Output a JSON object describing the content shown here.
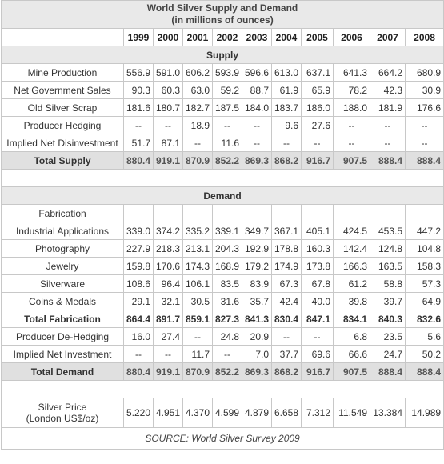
{
  "title_line1": "World Silver Supply and Demand",
  "title_line2": "(in millions of ounces)",
  "years": [
    "1999",
    "2000",
    "2001",
    "2002",
    "2003",
    "2004",
    "2005",
    "2006",
    "2007",
    "2008"
  ],
  "supply_header": "Supply",
  "supply_rows": [
    {
      "label": "Mine Production",
      "values": [
        "556.9",
        "591.0",
        "606.2",
        "593.9",
        "596.6",
        "613.0",
        "637.1",
        "641.3",
        "664.2",
        "680.9"
      ]
    },
    {
      "label": "Net Government Sales",
      "values": [
        "90.3",
        "60.3",
        "63.0",
        "59.2",
        "88.7",
        "61.9",
        "65.9",
        "78.2",
        "42.3",
        "30.9"
      ]
    },
    {
      "label": "Old Silver Scrap",
      "values": [
        "181.6",
        "180.7",
        "182.7",
        "187.5",
        "184.0",
        "183.7",
        "186.0",
        "188.0",
        "181.9",
        "176.6"
      ]
    },
    {
      "label": "Producer Hedging",
      "values": [
        "--",
        "--",
        "18.9",
        "--",
        "--",
        "9.6",
        "27.6",
        "--",
        "--",
        "--"
      ]
    },
    {
      "label": "Implied Net Disinvestment",
      "values": [
        "51.7",
        "87.1",
        "--",
        "11.6",
        "--",
        "--",
        "--",
        "--",
        "--",
        "--"
      ]
    }
  ],
  "total_supply": {
    "label": "Total Supply",
    "values": [
      "880.4",
      "919.1",
      "870.9",
      "852.2",
      "869.3",
      "868.2",
      "916.7",
      "907.5",
      "888.4",
      "888.4"
    ]
  },
  "demand_header": "Demand",
  "fabrication_label": "Fabrication",
  "fabrication_rows": [
    {
      "label": "Industrial Applications",
      "values": [
        "339.0",
        "374.2",
        "335.2",
        "339.1",
        "349.7",
        "367.1",
        "405.1",
        "424.5",
        "453.5",
        "447.2"
      ]
    },
    {
      "label": "Photography",
      "values": [
        "227.9",
        "218.3",
        "213.1",
        "204.3",
        "192.9",
        "178.8",
        "160.3",
        "142.4",
        "124.8",
        "104.8"
      ]
    },
    {
      "label": "Jewelry",
      "values": [
        "159.8",
        "170.6",
        "174.3",
        "168.9",
        "179.2",
        "174.9",
        "173.8",
        "166.3",
        "163.5",
        "158.3"
      ]
    },
    {
      "label": "Silverware",
      "values": [
        "108.6",
        "96.4",
        "106.1",
        "83.5",
        "83.9",
        "67.3",
        "67.8",
        "61.2",
        "58.8",
        "57.3"
      ]
    },
    {
      "label": "Coins & Medals",
      "values": [
        "29.1",
        "32.1",
        "30.5",
        "31.6",
        "35.7",
        "42.4",
        "40.0",
        "39.8",
        "39.7",
        "64.9"
      ]
    }
  ],
  "total_fabrication": {
    "label": "Total Fabrication",
    "values": [
      "864.4",
      "891.7",
      "859.1",
      "827.3",
      "841.3",
      "830.4",
      "847.1",
      "834.1",
      "840.3",
      "832.6"
    ]
  },
  "other_demand_rows": [
    {
      "label": "Producer De-Hedging",
      "values": [
        "16.0",
        "27.4",
        "--",
        "24.8",
        "20.9",
        "--",
        "--",
        "6.8",
        "23.5",
        "5.6"
      ]
    },
    {
      "label": "Implied Net Investment",
      "values": [
        "--",
        "--",
        "11.7",
        "--",
        "7.0",
        "37.7",
        "69.6",
        "66.6",
        "24.7",
        "50.2"
      ]
    }
  ],
  "total_demand": {
    "label": "Total Demand",
    "values": [
      "880.4",
      "919.1",
      "870.9",
      "852.2",
      "869.3",
      "868.2",
      "916.7",
      "907.5",
      "888.4",
      "888.4"
    ]
  },
  "price": {
    "label_line1": "Silver Price",
    "label_line2": "(London US$/oz)",
    "values": [
      "5.220",
      "4.951",
      "4.370",
      "4.599",
      "4.879",
      "6.658",
      "7.312",
      "11.549",
      "13.384",
      "14.989"
    ]
  },
  "source": "SOURCE: World Silver Survey 2009"
}
